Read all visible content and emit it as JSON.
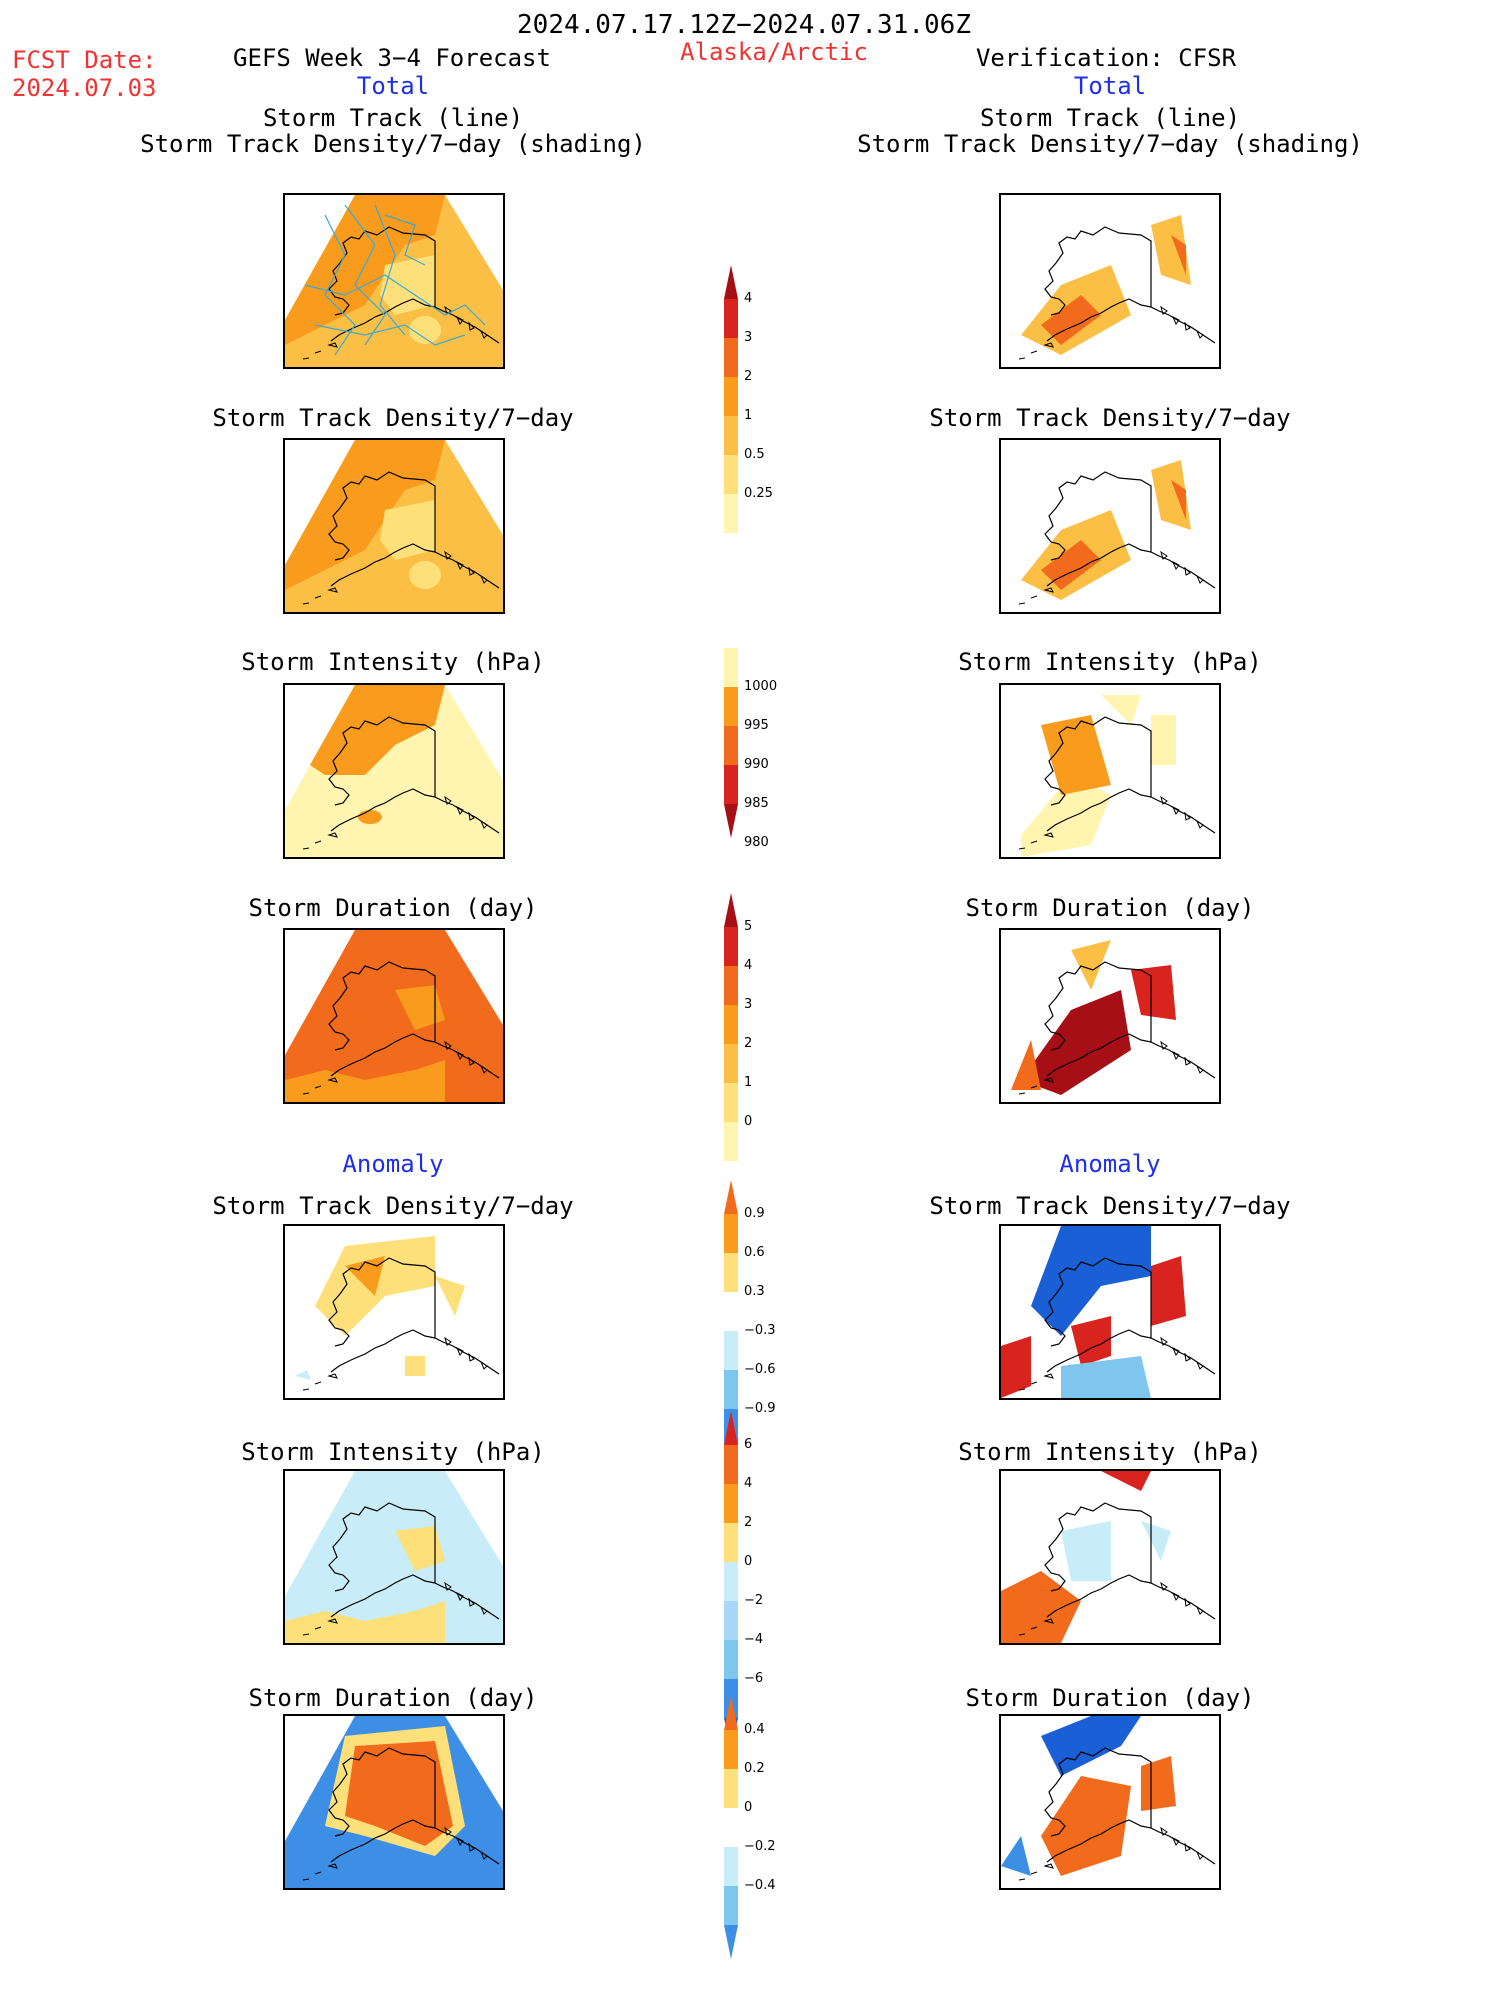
{
  "header": {
    "period": "2024.07.17.12Z−2024.07.31.06Z",
    "fcst_label": "FCST Date:",
    "fcst_date": "2024.07.03",
    "left_title": "GEFS Week 3−4 Forecast",
    "region": "Alaska/Arctic",
    "right_title": "Verification: CFSR",
    "left_sub": "Total",
    "right_sub": "Total"
  },
  "titles": {
    "track_line": "Storm Track (line)",
    "track_shading": "Storm Track Density/7−day (shading)",
    "density": "Storm Track Density/7−day",
    "intensity": "Storm Intensity (hPa)",
    "duration": "Storm Duration (day)",
    "anomaly": "Anomaly"
  },
  "colorbars": {
    "density": [
      "4",
      "3",
      "2",
      "1",
      "0.5",
      "0.25"
    ],
    "intensity": [
      "1000",
      "995",
      "990",
      "985",
      "980"
    ],
    "duration": [
      "5",
      "4",
      "3",
      "2",
      "1",
      "0"
    ],
    "density_anom": [
      "0.9",
      "0.6",
      "0.3",
      "−0.3",
      "−0.6",
      "−0.9"
    ],
    "intensity_anom": [
      "6",
      "4",
      "2",
      "0",
      "−2",
      "−4",
      "−6"
    ],
    "duration_anom": [
      "0.4",
      "0.2",
      "0",
      "−0.2",
      "−0.4"
    ]
  },
  "colors": {
    "pale_yellow": "#fff5b0",
    "yellow": "#fde07a",
    "light_orange": "#fbbf45",
    "orange": "#f99b1c",
    "dark_orange": "#f26a1b",
    "red": "#d8231e",
    "dark_red": "#a50f15",
    "light_blue": "#c8ecf8",
    "mid_blue": "#7fc6ef",
    "blue": "#3d8fe6",
    "dark_blue": "#1a5fd6",
    "track_line": "#3aa9d6"
  }
}
